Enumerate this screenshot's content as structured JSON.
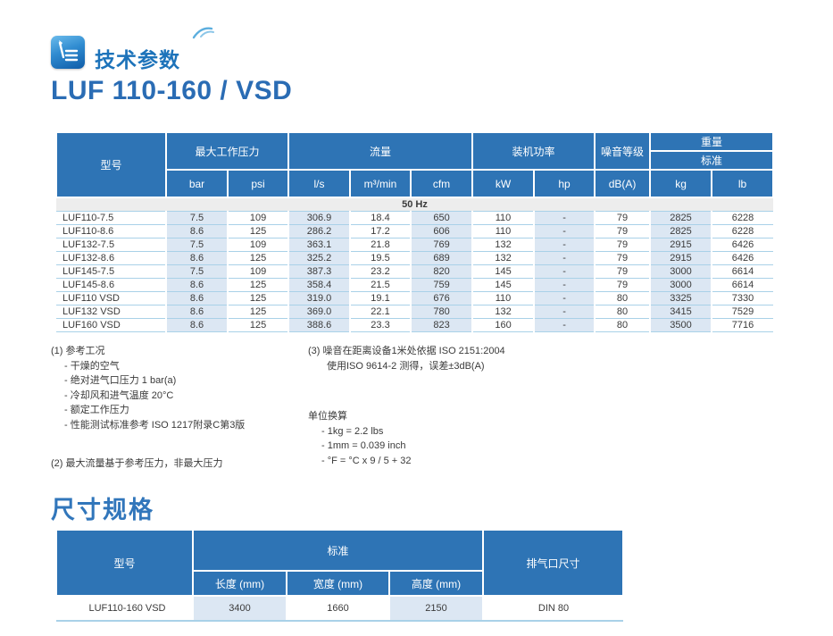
{
  "header": {
    "icon": "edit-document-icon",
    "section_title": "技术参数",
    "product_title": "LUF 110-160 / VSD"
  },
  "colors": {
    "header_blue": "#2E74B5",
    "cell_shade_blue": "#DCE7F3",
    "row_line_blue": "#A9D1E8",
    "title_blue": "#2A6CB4",
    "freq_row_gray": "#EDEDED"
  },
  "spec_table": {
    "model_header": "型号",
    "groups": {
      "pressure": "最大工作压力",
      "flow": "流量",
      "power": "装机功率",
      "noise": "噪音等级",
      "weight": "重量",
      "weight_sub": "标准"
    },
    "units": [
      "bar",
      "psi",
      "l/s",
      "m³/min",
      "cfm",
      "kW",
      "hp",
      "dB(A)",
      "kg",
      "lb"
    ],
    "freq_label": "50 Hz",
    "rows": [
      [
        "LUF110-7.5",
        "7.5",
        "109",
        "306.9",
        "18.4",
        "650",
        "110",
        "-",
        "79",
        "2825",
        "6228"
      ],
      [
        "LUF110-8.6",
        "8.6",
        "125",
        "286.2",
        "17.2",
        "606",
        "110",
        "-",
        "79",
        "2825",
        "6228"
      ],
      [
        "LUF132-7.5",
        "7.5",
        "109",
        "363.1",
        "21.8",
        "769",
        "132",
        "-",
        "79",
        "2915",
        "6426"
      ],
      [
        "LUF132-8.6",
        "8.6",
        "125",
        "325.2",
        "19.5",
        "689",
        "132",
        "-",
        "79",
        "2915",
        "6426"
      ],
      [
        "LUF145-7.5",
        "7.5",
        "109",
        "387.3",
        "23.2",
        "820",
        "145",
        "-",
        "79",
        "3000",
        "6614"
      ],
      [
        "LUF145-8.6",
        "8.6",
        "125",
        "358.4",
        "21.5",
        "759",
        "145",
        "-",
        "79",
        "3000",
        "6614"
      ],
      [
        "LUF110 VSD",
        "8.6",
        "125",
        "319.0",
        "19.1",
        "676",
        "110",
        "-",
        "80",
        "3325",
        "7330"
      ],
      [
        "LUF132 VSD",
        "8.6",
        "125",
        "369.0",
        "22.1",
        "780",
        "132",
        "-",
        "80",
        "3415",
        "7529"
      ],
      [
        "LUF160 VSD",
        "8.6",
        "125",
        "388.6",
        "23.3",
        "823",
        "160",
        "-",
        "80",
        "3500",
        "7716"
      ]
    ]
  },
  "footnotes": {
    "note1_title": "(1) 参考工况",
    "note1_items": [
      "- 干燥的空气",
      "- 绝对进气口压力 1 bar(a)",
      "- 冷却风和进气温度 20°C",
      "- 额定工作压力",
      "- 性能测试标准参考 ISO 1217附录C第3版"
    ],
    "note2": "(2) 最大流量基于参考压力，非最大压力",
    "note3_line1": "(3) 噪音在距离设备1米处依据 ISO 2151:2004",
    "note3_line2": "使用ISO 9614-2 测得，误差±3dB(A)",
    "conv_title": "单位换算",
    "conv_items": [
      "- 1kg = 2.2 lbs",
      "- 1mm = 0.039 inch",
      "- °F = °C x 9 / 5 + 32"
    ]
  },
  "dim_section_title": "尺寸规格",
  "dim_table": {
    "model_header": "型号",
    "group_standard": "标准",
    "units": [
      "长度 (mm)",
      "宽度 (mm)",
      "高度 (mm)"
    ],
    "outlet_header": "排气口尺寸",
    "rows": [
      [
        "LUF110-160 VSD",
        "3400",
        "1660",
        "2150",
        "DIN 80"
      ]
    ]
  }
}
